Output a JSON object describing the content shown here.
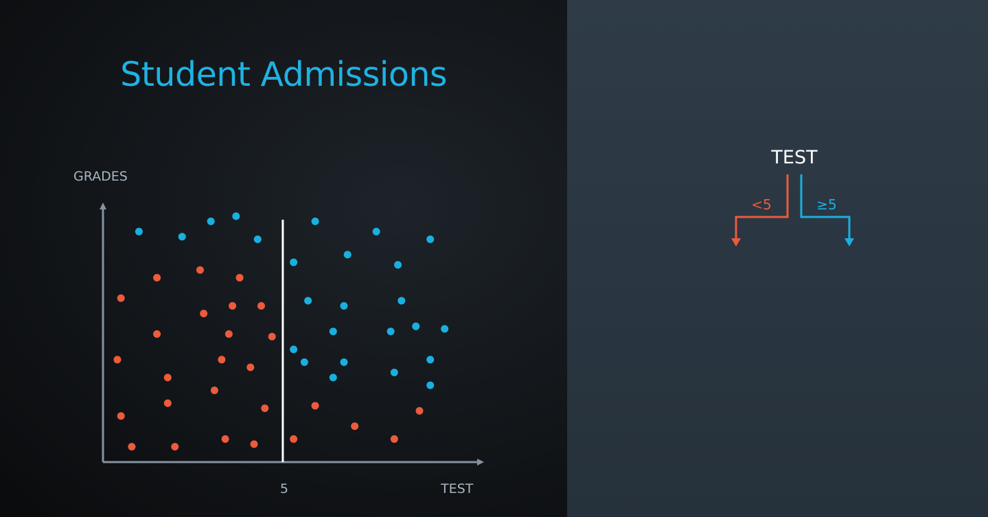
{
  "title": "Student Admissions",
  "colors": {
    "rejected": "#ec5b3c",
    "accepted": "#19b0e0",
    "axis": "#8592a0",
    "split_line": "#ffffff",
    "title": "#1fb3e3"
  },
  "chart_data": {
    "type": "scatter",
    "xlabel": "TEST",
    "ylabel": "GRADES",
    "xlim": [
      0,
      10.5
    ],
    "ylim": [
      0,
      10
    ],
    "split": {
      "x": 5,
      "label": "5"
    },
    "series": [
      {
        "class": "rejected",
        "color": "#ec5b3c",
        "points": [
          [
            0.5,
            6.4
          ],
          [
            1.5,
            7.2
          ],
          [
            2.7,
            7.5
          ],
          [
            3.8,
            7.2
          ],
          [
            2.8,
            5.8
          ],
          [
            3.6,
            6.1
          ],
          [
            4.4,
            6.1
          ],
          [
            1.5,
            5.0
          ],
          [
            3.5,
            5.0
          ],
          [
            4.7,
            4.9
          ],
          [
            0.4,
            4.0
          ],
          [
            3.3,
            4.0
          ],
          [
            4.1,
            3.7
          ],
          [
            1.8,
            3.3
          ],
          [
            3.1,
            2.8
          ],
          [
            1.8,
            2.3
          ],
          [
            4.5,
            2.1
          ],
          [
            0.5,
            1.8
          ],
          [
            0.8,
            0.6
          ],
          [
            2.0,
            0.6
          ],
          [
            3.4,
            0.9
          ],
          [
            4.2,
            0.7
          ],
          [
            5.3,
            0.9
          ],
          [
            5.9,
            2.2
          ],
          [
            7.0,
            1.4
          ],
          [
            8.1,
            0.9
          ],
          [
            8.8,
            2.0
          ]
        ]
      },
      {
        "class": "accepted",
        "color": "#19b0e0",
        "points": [
          [
            1.0,
            9.0
          ],
          [
            2.2,
            8.8
          ],
          [
            3.0,
            9.4
          ],
          [
            3.7,
            9.6
          ],
          [
            4.3,
            8.7
          ],
          [
            5.9,
            9.4
          ],
          [
            7.6,
            9.0
          ],
          [
            9.1,
            8.7
          ],
          [
            5.3,
            7.8
          ],
          [
            6.8,
            8.1
          ],
          [
            8.2,
            7.7
          ],
          [
            5.7,
            6.3
          ],
          [
            6.7,
            6.1
          ],
          [
            8.3,
            6.3
          ],
          [
            6.4,
            5.1
          ],
          [
            8.0,
            5.1
          ],
          [
            8.7,
            5.3
          ],
          [
            9.5,
            5.2
          ],
          [
            5.3,
            4.4
          ],
          [
            5.6,
            3.9
          ],
          [
            6.7,
            3.9
          ],
          [
            9.1,
            4.0
          ],
          [
            6.4,
            3.3
          ],
          [
            8.1,
            3.5
          ],
          [
            9.1,
            3.0
          ]
        ]
      }
    ]
  },
  "tree": {
    "root": "TEST",
    "left_branch": "<5",
    "right_branch": "≥5"
  }
}
